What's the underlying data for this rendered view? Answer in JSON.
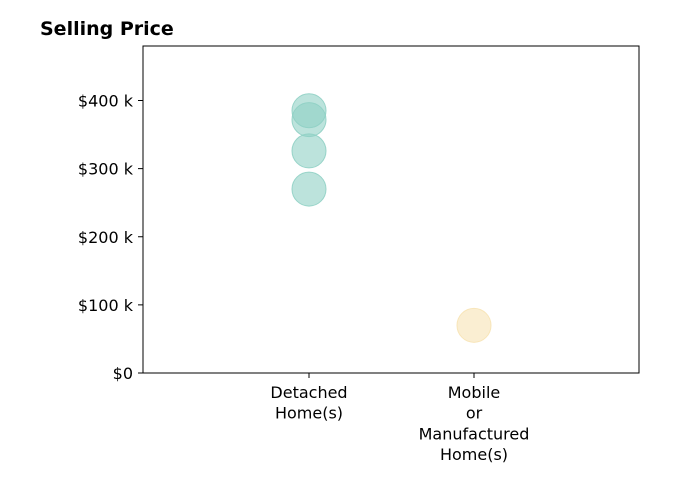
{
  "chart_data": {
    "type": "scatter",
    "title": "Selling Price",
    "xlabel": "",
    "ylabel": "",
    "categories": [
      [
        "Detached",
        "Home(s)"
      ],
      [
        "Mobile",
        "or",
        "Manufactured",
        "Home(s)"
      ]
    ],
    "y_ticks": [
      {
        "value": 0,
        "label": "$0"
      },
      {
        "value": 100000,
        "label": "$100 k"
      },
      {
        "value": 200000,
        "label": "$200 k"
      },
      {
        "value": 300000,
        "label": "$300 k"
      },
      {
        "value": 400000,
        "label": "$400 k"
      }
    ],
    "ylim": [
      0,
      480000
    ],
    "grid": false,
    "series": [
      {
        "category_index": 0,
        "values": [
          385000,
          372000,
          326000,
          270000
        ],
        "color": "#8fd0c4"
      },
      {
        "category_index": 1,
        "values": [
          70000
        ],
        "color": "#f7e3b4"
      }
    ]
  }
}
